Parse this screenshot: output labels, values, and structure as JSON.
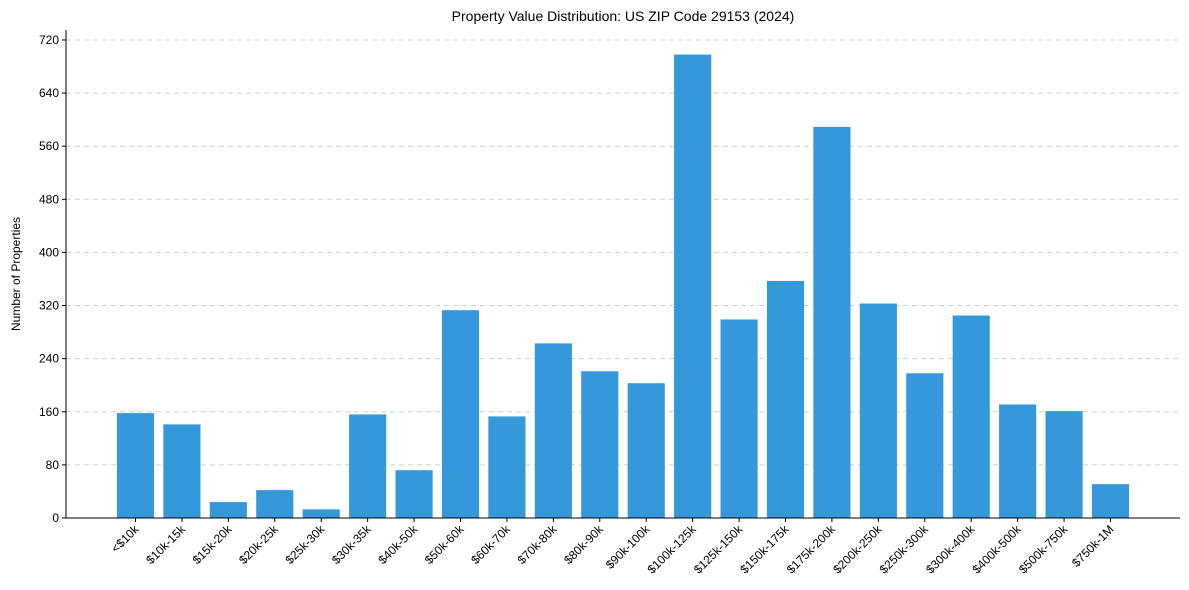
{
  "chart_data": {
    "type": "bar",
    "title": "Property Value Distribution: US ZIP Code 29153 (2024)",
    "xlabel": "",
    "ylabel": "Number of Properties",
    "ylim": [
      0,
      735
    ],
    "yticks": [
      0,
      80,
      160,
      240,
      320,
      400,
      480,
      560,
      640,
      720
    ],
    "grid": "y-dashed",
    "bar_color": "#3498db",
    "categories": [
      "<$10k",
      "$10k-15k",
      "$15k-20k",
      "$20k-25k",
      "$25k-30k",
      "$30k-35k",
      "$40k-50k",
      "$50k-60k",
      "$60k-70k",
      "$70k-80k",
      "$80k-90k",
      "$90k-100k",
      "$100k-125k",
      "$125k-150k",
      "$150k-175k",
      "$175k-200k",
      "$200k-250k",
      "$250k-300k",
      "$300k-400k",
      "$400k-500k",
      "$500k-750k",
      "$750k-1M"
    ],
    "values": [
      158,
      141,
      24,
      42,
      13,
      156,
      72,
      313,
      153,
      263,
      221,
      203,
      698,
      299,
      357,
      589,
      323,
      218,
      305,
      171,
      161,
      51
    ]
  }
}
